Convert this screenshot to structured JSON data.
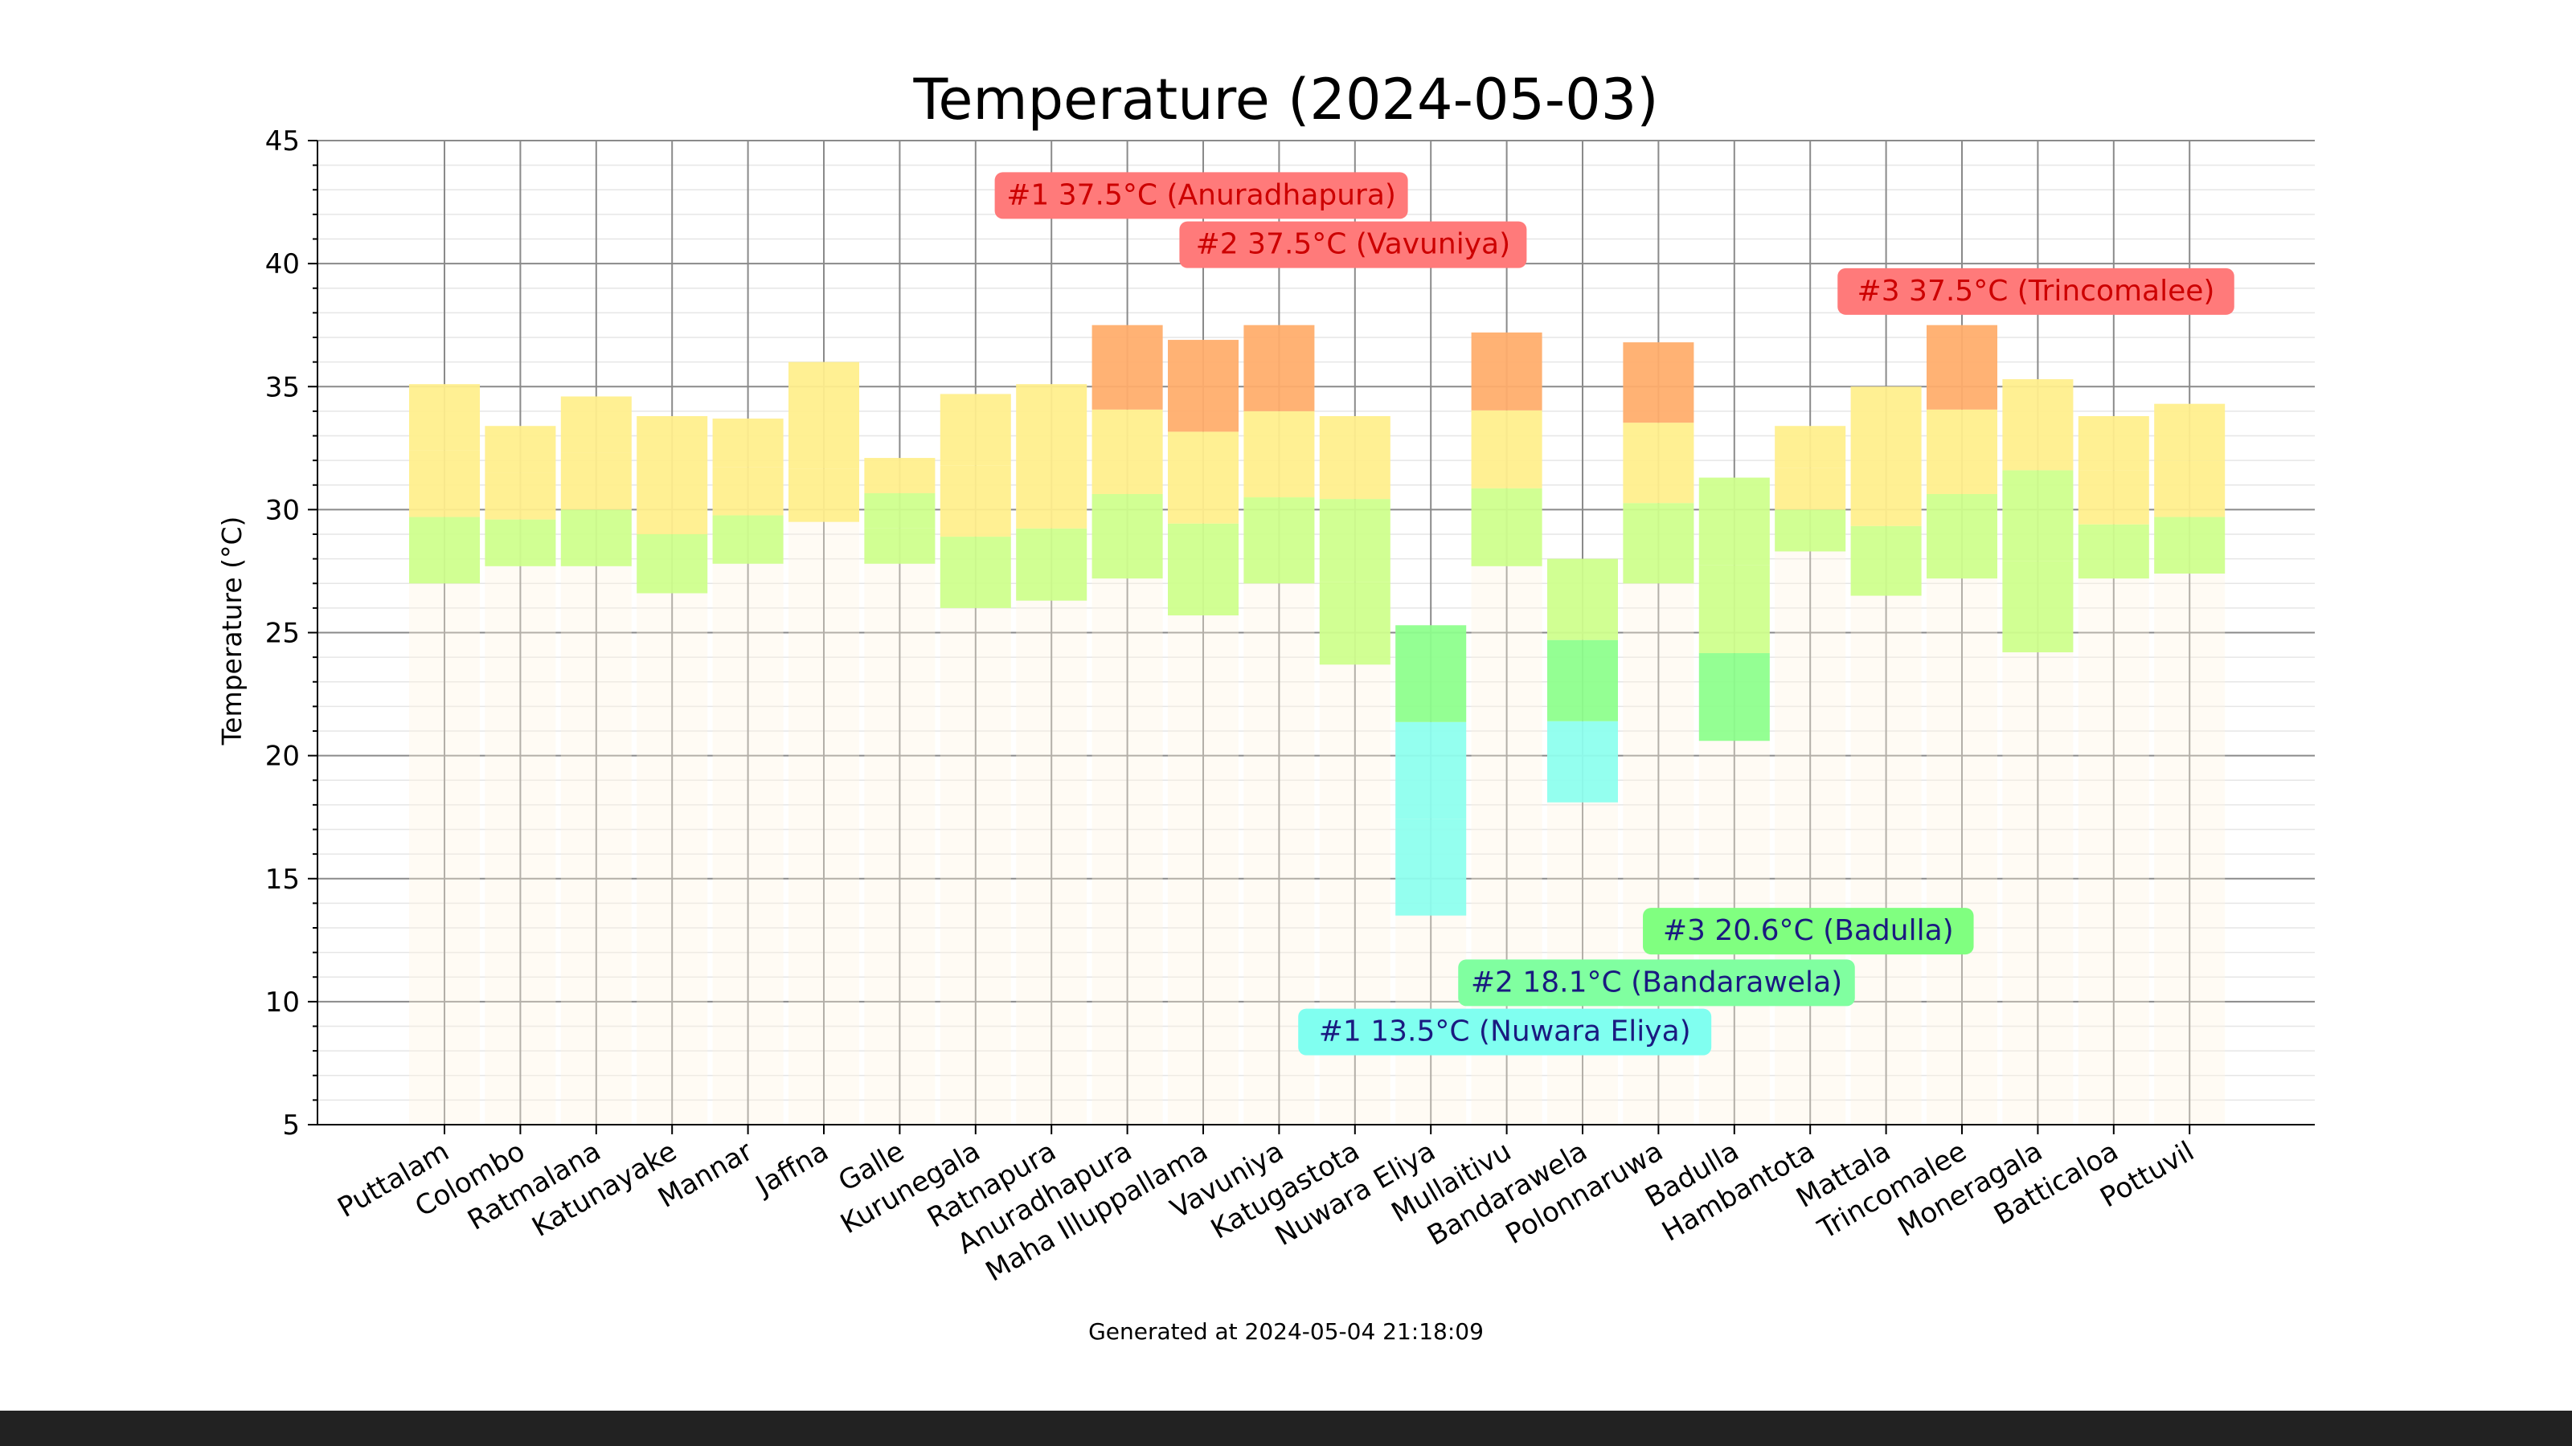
{
  "chart_data": {
    "type": "bar",
    "subtype": "floating-range-bands",
    "title": "Temperature (2024-05-03)",
    "ylabel": "Temperature (°C)",
    "xlabel": "",
    "ylim": [
      5,
      45
    ],
    "yticks": [
      5,
      10,
      15,
      20,
      25,
      30,
      35,
      40,
      45
    ],
    "grid": true,
    "categories": [
      "Puttalam",
      "Colombo",
      "Ratmalana",
      "Katunayake",
      "Mannar",
      "Jaffna",
      "Galle",
      "Kurunegala",
      "Ratnapura",
      "Anuradhapura",
      "Maha Illuppallama",
      "Vavuniya",
      "Katugastota",
      "Nuwara Eliya",
      "Mullaitivu",
      "Bandarawela",
      "Polonnaruwa",
      "Badulla",
      "Hambantota",
      "Mattala",
      "Trincomalee",
      "Moneragala",
      "Batticaloa",
      "Pottuvil"
    ],
    "series": [
      {
        "values": [
          [
            27.0,
            35.1
          ],
          [
            27.7,
            33.4
          ],
          [
            27.7,
            34.6
          ],
          [
            26.6,
            33.8
          ],
          [
            27.8,
            33.7
          ],
          [
            29.5,
            36.0
          ],
          [
            27.8,
            32.1
          ],
          [
            26.0,
            34.7
          ],
          [
            26.3,
            35.1
          ],
          [
            27.2,
            37.5
          ],
          [
            25.7,
            36.9
          ],
          [
            27.0,
            37.5
          ],
          [
            23.7,
            33.8
          ],
          [
            13.5,
            25.3
          ],
          [
            27.7,
            37.2
          ],
          [
            18.1,
            28.0
          ],
          [
            27.0,
            36.8
          ],
          [
            20.6,
            31.3
          ],
          [
            28.3,
            33.4
          ],
          [
            26.5,
            35.0
          ],
          [
            27.2,
            37.5
          ],
          [
            24.2,
            35.3
          ],
          [
            27.2,
            33.8
          ],
          [
            27.4,
            34.3
          ]
        ]
      }
    ],
    "color_scale": [
      {
        "from": 5,
        "to": 10,
        "color": "#88ccff"
      },
      {
        "from": 10,
        "to": 15,
        "color": "#88eeff"
      },
      {
        "from": 15,
        "to": 20,
        "color": "#88ffee"
      },
      {
        "from": 20,
        "to": 25,
        "color": "#88ff88"
      },
      {
        "from": 25,
        "to": 30,
        "color": "#ccff88"
      },
      {
        "from": 30,
        "to": 35,
        "color": "#ffee88"
      },
      {
        "from": 35,
        "to": 40,
        "color": "#ffaa66"
      },
      {
        "from": 40,
        "to": 45,
        "color": "#ff6666"
      }
    ],
    "annotations": [
      {
        "text": "#1 37.5°C (Anuradhapura)",
        "y": 42.8,
        "anchor_x": "Anuradhapura",
        "bg": "#ff7a7a",
        "color": "#cc0000"
      },
      {
        "text": "#2 37.5°C (Vavuniya)",
        "y": 40.8,
        "anchor_x": "Vavuniya",
        "bg": "#ff7a7a",
        "color": "#cc0000"
      },
      {
        "text": "#3 37.5°C (Trincomalee)",
        "y": 38.9,
        "anchor_x": "Trincomalee",
        "bg": "#ff7a7a",
        "color": "#cc0000"
      },
      {
        "text": "#1 13.5°C (Nuwara Eliya)",
        "y": 8.8,
        "anchor_x": "Nuwara Eliya",
        "bg": "#80fff0",
        "color": "#1a1a80"
      },
      {
        "text": "#2 18.1°C (Bandarawela)",
        "y": 10.8,
        "anchor_x": "Bandarawela",
        "bg": "#80ffa0",
        "color": "#1a1a80"
      },
      {
        "text": "#3 20.6°C (Badulla)",
        "y": 12.9,
        "anchor_x": "Badulla",
        "bg": "#80ff80",
        "color": "#1a1a80"
      }
    ]
  },
  "footer": {
    "generated": "Generated at 2024-05-04 21:18:09"
  }
}
